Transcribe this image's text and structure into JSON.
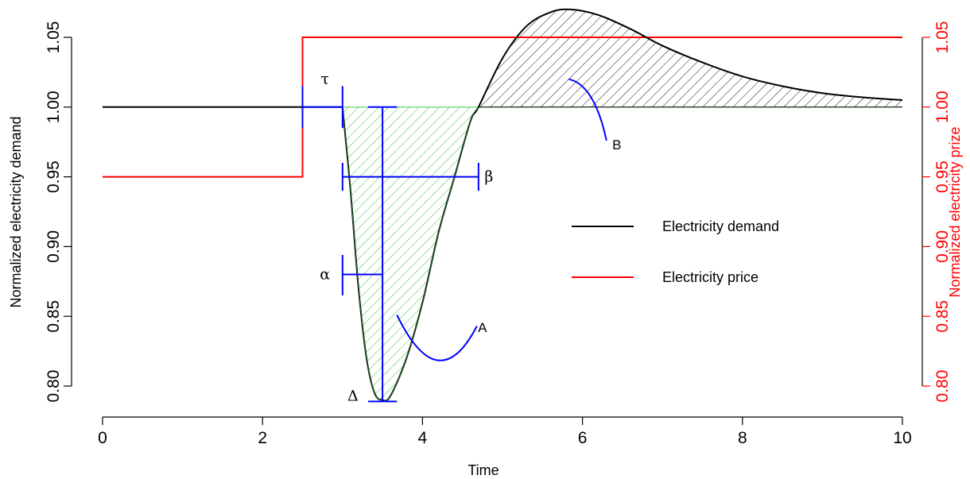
{
  "chart_data": {
    "type": "line",
    "xlabel": "Time",
    "ylabel": "Normalized electricity demand",
    "ylabel_right": "Normalized electricity prize",
    "xlim": [
      0,
      10
    ],
    "ylim": [
      0.79,
      1.05
    ],
    "x_ticks": [
      "0",
      "2",
      "4",
      "6",
      "8",
      "10"
    ],
    "y_ticks": [
      "0.80",
      "0.85",
      "0.90",
      "0.95",
      "1.00",
      "1.05"
    ],
    "y_right_ticks": [
      "0.80",
      "0.85",
      "0.90",
      "0.95",
      "1.00",
      "1.05"
    ],
    "grid": false,
    "legend_position": "center-right",
    "legend": [
      {
        "name": "Electricity demand",
        "color": "#000000"
      },
      {
        "name": "Electricity price",
        "color": "#ff0000"
      }
    ],
    "series": [
      {
        "name": "Electricity demand",
        "color": "#000000",
        "x": [
          0,
          2.5,
          3.0,
          3.1,
          3.2,
          3.3,
          3.4,
          3.5,
          3.6,
          3.8,
          4.0,
          4.2,
          4.4,
          4.6,
          4.7,
          5.0,
          5.3,
          5.6,
          5.85,
          6.2,
          6.6,
          7.0,
          7.5,
          8.0,
          8.5,
          9.0,
          9.5,
          10.0
        ],
        "values": [
          1.0,
          1.0,
          1.0,
          0.94,
          0.87,
          0.82,
          0.795,
          0.79,
          0.793,
          0.82,
          0.86,
          0.91,
          0.95,
          0.99,
          1.0,
          1.035,
          1.058,
          1.068,
          1.07,
          1.066,
          1.056,
          1.044,
          1.032,
          1.022,
          1.015,
          1.01,
          1.007,
          1.005
        ]
      },
      {
        "name": "Electricity price",
        "color": "#ff0000",
        "x": [
          0,
          2.5,
          2.5,
          10
        ],
        "values": [
          0.95,
          0.95,
          1.05,
          1.05
        ]
      }
    ],
    "annotations": [
      {
        "text": "τ",
        "x": 2.78,
        "y": 1.02
      },
      {
        "text": "β",
        "x": 4.83,
        "y": 0.95
      },
      {
        "text": "α",
        "x": 2.78,
        "y": 0.88
      },
      {
        "text": "Δ",
        "x": 3.13,
        "y": 0.793
      },
      {
        "text": "A",
        "x": 4.75,
        "y": 0.842
      },
      {
        "text": "B",
        "x": 6.43,
        "y": 0.973
      }
    ],
    "shaded_regions": [
      {
        "label": "A",
        "hatch_color": "#55cc55",
        "x_from": 3.0,
        "x_to": 4.7
      },
      {
        "label": "B",
        "hatch_color": "#000000",
        "x_from": 4.7,
        "x_to": 10.0
      }
    ]
  }
}
